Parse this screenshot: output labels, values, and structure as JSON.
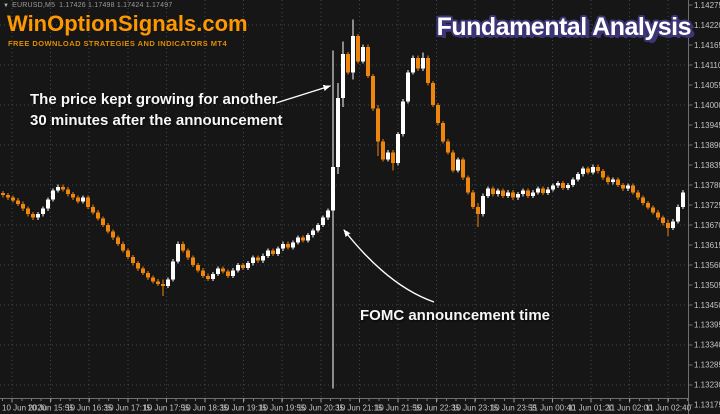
{
  "quote_bar": {
    "collapse_icon": "▼",
    "symbol": "EURUSD,M5",
    "ohlc": "1.17426 1.17498 1.17424 1.17497"
  },
  "watermark": {
    "title": "WinOptionSignals.com",
    "subtitle": "FREE DOWNLOAD STRATEGIES AND INDICATORS MT4",
    "title_color": "#ff9800",
    "subtitle_color": "#e18b00"
  },
  "headline": {
    "text": "Fundamental Analysis",
    "fill": "#ffffff",
    "outline": "#3c3577"
  },
  "annotations": {
    "growth_note_line1": "The price kept growing for another",
    "growth_note_line2": "30 minutes after the announcement",
    "fomc_note": "FOMC announcement time",
    "arrow_color": "#ffffff"
  },
  "chart_data": {
    "type": "candlestick",
    "symbol": "EURUSD",
    "timeframe": "M5",
    "background": "#161616",
    "grid_color": "#3e4654",
    "bull_color": "#ffffff",
    "bear_color": "#ee860d",
    "axis_line_color": "#6e6e6e",
    "axis_text_color": "#c4c4c4",
    "ylim": {
      "top": 1.14289,
      "bottom": 1.13194
    },
    "y_ticks": [
      1.14275,
      1.1422,
      1.14165,
      1.1411,
      1.14055,
      1.14,
      1.13945,
      1.1389,
      1.13835,
      1.1378,
      1.13725,
      1.1367,
      1.13615,
      1.1356,
      1.13505,
      1.1345,
      1.13395,
      1.1334,
      1.13285,
      1.1323,
      1.13175
    ],
    "x_labels": [
      "10 Jun 2020",
      "10 Jun 15:55",
      "10 Jun 16:35",
      "10 Jun 17:15",
      "10 Jun 17:55",
      "10 Jun 18:35",
      "10 Jun 19:15",
      "10 Jun 19:55",
      "10 Jun 20:35",
      "10 Jun 21:15",
      "10 Jun 21:55",
      "10 Jun 22:35",
      "10 Jun 23:15",
      "10 Jun 23:55",
      "11 Jun 00:40",
      "11 Jun 01:20",
      "11 Jun 02:00",
      "11 Jun 02:40"
    ],
    "candles": [
      [
        1.13758,
        1.13764,
        1.13746,
        1.13752
      ],
      [
        1.13752,
        1.13758,
        1.13739,
        1.13745
      ],
      [
        1.13745,
        1.13751,
        1.13732,
        1.13738
      ],
      [
        1.13738,
        1.13744,
        1.13722,
        1.13728
      ],
      [
        1.13728,
        1.13734,
        1.13709,
        1.13715
      ],
      [
        1.13715,
        1.13721,
        1.13694,
        1.137
      ],
      [
        1.137,
        1.13706,
        1.13684,
        1.1369
      ],
      [
        1.1369,
        1.13706,
        1.13684,
        1.137
      ],
      [
        1.137,
        1.13721,
        1.13694,
        1.13715
      ],
      [
        1.13715,
        1.13746,
        1.13709,
        1.1374
      ],
      [
        1.1374,
        1.13771,
        1.13734,
        1.13765
      ],
      [
        1.13765,
        1.13781,
        1.13759,
        1.13775
      ],
      [
        1.13775,
        1.13781,
        1.13762,
        1.13768
      ],
      [
        1.13768,
        1.13774,
        1.13749,
        1.13755
      ],
      [
        1.13755,
        1.13761,
        1.13739,
        1.13745
      ],
      [
        1.13745,
        1.13751,
        1.13729,
        1.13735
      ],
      [
        1.13735,
        1.13751,
        1.13729,
        1.13745
      ],
      [
        1.13745,
        1.13751,
        1.13714,
        1.1372
      ],
      [
        1.1372,
        1.13726,
        1.13699,
        1.13705
      ],
      [
        1.13705,
        1.13711,
        1.13682,
        1.13688
      ],
      [
        1.13688,
        1.13694,
        1.13664,
        1.1367
      ],
      [
        1.1367,
        1.13676,
        1.13646,
        1.13652
      ],
      [
        1.13652,
        1.13658,
        1.13629,
        1.13635
      ],
      [
        1.13635,
        1.13641,
        1.13612,
        1.13618
      ],
      [
        1.13618,
        1.13624,
        1.13594,
        1.136
      ],
      [
        1.136,
        1.13606,
        1.13576,
        1.13582
      ],
      [
        1.13582,
        1.13588,
        1.13559,
        1.13565
      ],
      [
        1.13565,
        1.13571,
        1.13544,
        1.1355
      ],
      [
        1.1355,
        1.13556,
        1.13532,
        1.13538
      ],
      [
        1.13538,
        1.13544,
        1.13519,
        1.13525
      ],
      [
        1.13525,
        1.13531,
        1.13509,
        1.13515
      ],
      [
        1.13515,
        1.13521,
        1.13502,
        1.13508
      ],
      [
        1.13508,
        1.1352,
        1.13475,
        1.13502
      ],
      [
        1.13502,
        1.13526,
        1.13496,
        1.1352
      ],
      [
        1.1352,
        1.13576,
        1.13514,
        1.1357
      ],
      [
        1.1357,
        1.13624,
        1.13564,
        1.13618
      ],
      [
        1.13618,
        1.13624,
        1.13594,
        1.136
      ],
      [
        1.136,
        1.13606,
        1.13574,
        1.1358
      ],
      [
        1.1358,
        1.13586,
        1.13554,
        1.1356
      ],
      [
        1.1356,
        1.13566,
        1.13539,
        1.13545
      ],
      [
        1.13545,
        1.13551,
        1.13524,
        1.1353
      ],
      [
        1.1353,
        1.13536,
        1.13516,
        1.13522
      ],
      [
        1.13522,
        1.13541,
        1.13516,
        1.13535
      ],
      [
        1.13535,
        1.13556,
        1.13529,
        1.1355
      ],
      [
        1.1355,
        1.13556,
        1.13536,
        1.13542
      ],
      [
        1.13542,
        1.13548,
        1.13524,
        1.1353
      ],
      [
        1.1353,
        1.13551,
        1.13524,
        1.13545
      ],
      [
        1.13545,
        1.13566,
        1.13539,
        1.1356
      ],
      [
        1.1356,
        1.13566,
        1.13546,
        1.13552
      ],
      [
        1.13552,
        1.13571,
        1.13546,
        1.13565
      ],
      [
        1.13565,
        1.13586,
        1.13559,
        1.1358
      ],
      [
        1.1358,
        1.13586,
        1.13566,
        1.13572
      ],
      [
        1.13572,
        1.13591,
        1.13566,
        1.13585
      ],
      [
        1.13585,
        1.13606,
        1.13579,
        1.136
      ],
      [
        1.136,
        1.13606,
        1.13584,
        1.1359
      ],
      [
        1.1359,
        1.13611,
        1.13584,
        1.13605
      ],
      [
        1.13605,
        1.13624,
        1.13599,
        1.13618
      ],
      [
        1.13618,
        1.13624,
        1.13602,
        1.13608
      ],
      [
        1.13608,
        1.13628,
        1.13602,
        1.13622
      ],
      [
        1.13622,
        1.13641,
        1.13616,
        1.13635
      ],
      [
        1.13635,
        1.13641,
        1.13622,
        1.13628
      ],
      [
        1.13628,
        1.13648,
        1.13622,
        1.13642
      ],
      [
        1.13642,
        1.13661,
        1.13636,
        1.13655
      ],
      [
        1.13655,
        1.13676,
        1.13649,
        1.1367
      ],
      [
        1.1367,
        1.13696,
        1.13664,
        1.1369
      ],
      [
        1.1369,
        1.13716,
        1.13684,
        1.1371
      ],
      [
        1.1371,
        1.1415,
        1.1322,
        1.1383
      ],
      [
        1.1383,
        1.1406,
        1.1381,
        1.1402
      ],
      [
        1.1402,
        1.14175,
        1.13995,
        1.1414
      ],
      [
        1.1414,
        1.14146,
        1.14084,
        1.1409
      ],
      [
        1.1409,
        1.14235,
        1.1407,
        1.1419
      ],
      [
        1.1419,
        1.14196,
        1.14114,
        1.1412
      ],
      [
        1.1412,
        1.14166,
        1.14114,
        1.1416
      ],
      [
        1.1416,
        1.14166,
        1.14074,
        1.1408
      ],
      [
        1.1408,
        1.14086,
        1.13984,
        1.1399
      ],
      [
        1.1399,
        1.14,
        1.1386,
        1.139
      ],
      [
        1.139,
        1.13906,
        1.13844,
        1.1385
      ],
      [
        1.1385,
        1.13876,
        1.13844,
        1.1387
      ],
      [
        1.1387,
        1.13876,
        1.1382,
        1.1384
      ],
      [
        1.1384,
        1.13926,
        1.13834,
        1.1392
      ],
      [
        1.1392,
        1.14016,
        1.13914,
        1.1401
      ],
      [
        1.1401,
        1.14096,
        1.14004,
        1.1409
      ],
      [
        1.1409,
        1.14136,
        1.14084,
        1.1413
      ],
      [
        1.1413,
        1.14136,
        1.14094,
        1.141
      ],
      [
        1.141,
        1.14145,
        1.14094,
        1.1413
      ],
      [
        1.1413,
        1.14136,
        1.14054,
        1.1406
      ],
      [
        1.1406,
        1.14066,
        1.13994,
        1.14
      ],
      [
        1.14,
        1.14006,
        1.13944,
        1.1395
      ],
      [
        1.1395,
        1.13956,
        1.13894,
        1.139
      ],
      [
        1.139,
        1.13906,
        1.13864,
        1.1387
      ],
      [
        1.1387,
        1.13876,
        1.13814,
        1.1382
      ],
      [
        1.1382,
        1.13856,
        1.13814,
        1.1385
      ],
      [
        1.1385,
        1.13856,
        1.13794,
        1.138
      ],
      [
        1.138,
        1.13806,
        1.13754,
        1.1376
      ],
      [
        1.1376,
        1.13766,
        1.13714,
        1.1372
      ],
      [
        1.1372,
        1.1373,
        1.13665,
        1.137
      ],
      [
        1.137,
        1.13756,
        1.13694,
        1.1375
      ],
      [
        1.1375,
        1.13776,
        1.13744,
        1.1377
      ],
      [
        1.1377,
        1.13776,
        1.13749,
        1.13755
      ],
      [
        1.13755,
        1.13771,
        1.13749,
        1.13765
      ],
      [
        1.13765,
        1.13771,
        1.13744,
        1.1375
      ],
      [
        1.1375,
        1.13766,
        1.13744,
        1.1376
      ],
      [
        1.1376,
        1.13766,
        1.13739,
        1.13745
      ],
      [
        1.13745,
        1.13761,
        1.13739,
        1.13755
      ],
      [
        1.13755,
        1.13771,
        1.13749,
        1.13765
      ],
      [
        1.13765,
        1.13771,
        1.13744,
        1.1375
      ],
      [
        1.1375,
        1.13766,
        1.13744,
        1.1376
      ],
      [
        1.1376,
        1.13776,
        1.13754,
        1.1377
      ],
      [
        1.1377,
        1.13776,
        1.13752,
        1.13758
      ],
      [
        1.13758,
        1.13774,
        1.13752,
        1.13768
      ],
      [
        1.13768,
        1.13784,
        1.13762,
        1.13778
      ],
      [
        1.13778,
        1.13791,
        1.13772,
        1.13785
      ],
      [
        1.13785,
        1.13791,
        1.13766,
        1.13772
      ],
      [
        1.13772,
        1.13786,
        1.13766,
        1.1378
      ],
      [
        1.1378,
        1.13801,
        1.13774,
        1.13795
      ],
      [
        1.13795,
        1.13816,
        1.13789,
        1.1381
      ],
      [
        1.1381,
        1.13831,
        1.13804,
        1.13825
      ],
      [
        1.13825,
        1.13831,
        1.13809,
        1.13815
      ],
      [
        1.13815,
        1.13836,
        1.13809,
        1.1383
      ],
      [
        1.1383,
        1.13836,
        1.13812,
        1.13818
      ],
      [
        1.13818,
        1.13824,
        1.13794,
        1.138
      ],
      [
        1.138,
        1.13806,
        1.13782,
        1.13788
      ],
      [
        1.13788,
        1.13801,
        1.13782,
        1.13795
      ],
      [
        1.13795,
        1.13801,
        1.13774,
        1.1378
      ],
      [
        1.1378,
        1.13786,
        1.13764,
        1.1377
      ],
      [
        1.1377,
        1.13784,
        1.13764,
        1.13778
      ],
      [
        1.13778,
        1.13784,
        1.13754,
        1.1376
      ],
      [
        1.1376,
        1.13766,
        1.13739,
        1.13745
      ],
      [
        1.13745,
        1.13751,
        1.13724,
        1.1373
      ],
      [
        1.1373,
        1.13736,
        1.13712,
        1.13718
      ],
      [
        1.13718,
        1.13724,
        1.13699,
        1.13705
      ],
      [
        1.13705,
        1.13711,
        1.13684,
        1.1369
      ],
      [
        1.1369,
        1.13696,
        1.13669,
        1.13675
      ],
      [
        1.13675,
        1.13685,
        1.1364,
        1.13662
      ],
      [
        1.13662,
        1.13686,
        1.13656,
        1.1368
      ],
      [
        1.1368,
        1.13726,
        1.13674,
        1.1372
      ],
      [
        1.1372,
        1.13766,
        1.13714,
        1.1376
      ]
    ]
  }
}
